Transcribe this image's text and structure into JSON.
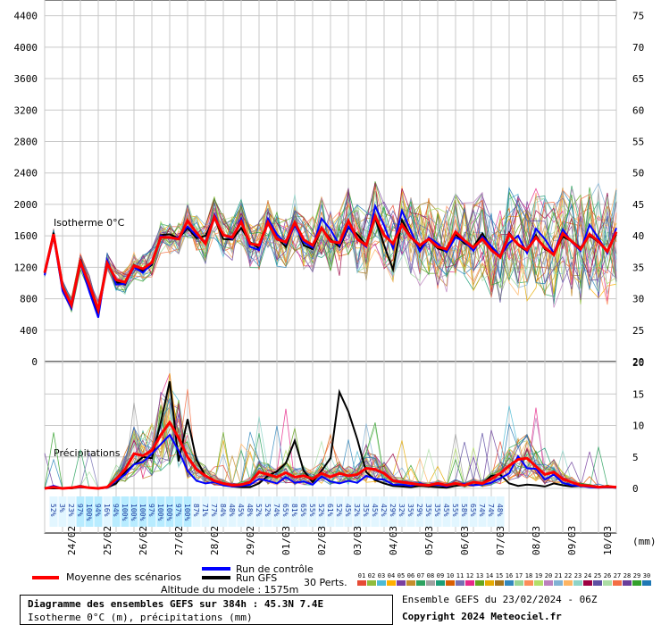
{
  "chart_data": {
    "type": "line",
    "title": "Diagramme des ensembles GEFS sur 384h : 45.3N 7.4E",
    "subtitle": "Isotherme 0°C (m), précipitations (mm)",
    "left_axis_ticks": [
      0,
      400,
      800,
      1200,
      1600,
      2000,
      2400,
      2800,
      3200,
      3600,
      4000,
      4400
    ],
    "right_axis_top_ticks": [
      20,
      25,
      30,
      35,
      40,
      45,
      50,
      55,
      60,
      65,
      70,
      75
    ],
    "right_axis_bottom_ticks": [
      0,
      5,
      10,
      15,
      20
    ],
    "right_axis_unit": "(mm)",
    "iso_range": [
      0,
      4600
    ],
    "precip_range": [
      0,
      20
    ],
    "panel_label_top": "Isotherme 0°C",
    "panel_label_bottom": "Précipitations",
    "date_labels": [
      "24/02",
      "25/02",
      "26/02",
      "27/02",
      "28/02",
      "29/02",
      "01/03",
      "02/03",
      "03/03",
      "04/03",
      "05/03",
      "06/03",
      "07/03",
      "08/03",
      "09/03",
      "10/03"
    ],
    "date_step_hours": 24,
    "first_date_hour": 18,
    "time_range_hours": [
      0,
      384
    ],
    "time_step_hours": 6,
    "probabilities": [
      "52%",
      "3%",
      "23%",
      "97%",
      "100%",
      "94%",
      "16%",
      "94%",
      "100%",
      "100%",
      "100%",
      "97%",
      "100%",
      "100%",
      "97%",
      "100%",
      "87%",
      "71%",
      "77%",
      "84%",
      "48%",
      "45%",
      "48%",
      "52%",
      "52%",
      "74%",
      "65%",
      "81%",
      "65%",
      "55%",
      "52%",
      "61%",
      "52%",
      "45%",
      "32%",
      "35%",
      "45%",
      "42%",
      "29%",
      "32%",
      "35%",
      "29%",
      "35%",
      "35%",
      "45%",
      "55%",
      "58%",
      "65%",
      "74%",
      "74%",
      "48%"
    ],
    "series": [
      {
        "name": "Moyenne des scénarios",
        "color": "#ff0000",
        "iso": [
          1130,
          1620,
          960,
          720,
          1270,
          980,
          660,
          1250,
          1040,
          1010,
          1220,
          1180,
          1260,
          1580,
          1580,
          1560,
          1790,
          1640,
          1500,
          1840,
          1610,
          1580,
          1780,
          1500,
          1480,
          1770,
          1560,
          1520,
          1770,
          1550,
          1480,
          1700,
          1530,
          1510,
          1790,
          1560,
          1480,
          1850,
          1610,
          1500,
          1740,
          1580,
          1480,
          1560,
          1460,
          1430,
          1650,
          1540,
          1450,
          1560,
          1420,
          1330,
          1620,
          1490,
          1420,
          1580,
          1450,
          1360,
          1630,
          1530,
          1430,
          1620,
          1530,
          1400,
          1650
        ],
        "pr": [
          0,
          0.2,
          0,
          0.1,
          0.3,
          0.1,
          0,
          0.2,
          1.5,
          3,
          5.5,
          5.2,
          6,
          8.5,
          10.5,
          8,
          5,
          3,
          2,
          1.2,
          0.8,
          0.5,
          0.6,
          1,
          2.6,
          2.2,
          1.8,
          2.5,
          1.8,
          2,
          1.5,
          2.4,
          1.8,
          2.4,
          2,
          2.2,
          3.2,
          3,
          2.4,
          1.2,
          1,
          0.8,
          0.6,
          0.5,
          0.8,
          0.5,
          0.8,
          0.5,
          1,
          0.8,
          1.5,
          2.4,
          3.6,
          4.6,
          4.8,
          3.5,
          2.2,
          2.6,
          1.5,
          1,
          0.5,
          0.4,
          0.2,
          0.3,
          0.2
        ]
      },
      {
        "name": "Run de contrôle",
        "color": "#0000ff",
        "iso": [
          1100,
          1590,
          900,
          680,
          1250,
          890,
          560,
          1290,
          980,
          990,
          1200,
          1130,
          1250,
          1600,
          1570,
          1580,
          1720,
          1600,
          1520,
          1870,
          1610,
          1560,
          1820,
          1460,
          1420,
          1820,
          1620,
          1500,
          1730,
          1520,
          1450,
          1820,
          1680,
          1480,
          1720,
          1560,
          1460,
          1980,
          1730,
          1440,
          1920,
          1660,
          1400,
          1580,
          1500,
          1390,
          1580,
          1530,
          1410,
          1590,
          1470,
          1340,
          1510,
          1600,
          1380,
          1690,
          1560,
          1380,
          1680,
          1520,
          1410,
          1740,
          1570,
          1380,
          1700
        ],
        "pr": [
          0,
          0.4,
          0,
          0.1,
          0.2,
          0.1,
          0,
          0.1,
          1.2,
          2.2,
          3.8,
          4.2,
          5.5,
          7,
          8.5,
          6,
          2.8,
          1.2,
          0.8,
          1,
          0.5,
          0.3,
          0.4,
          0.6,
          1.5,
          1.2,
          0.8,
          1.8,
          0.9,
          1.1,
          0.6,
          1.9,
          1.1,
          0.8,
          1.2,
          0.9,
          2,
          1.5,
          1.4,
          0.6,
          0.6,
          0.4,
          0.8,
          0.5,
          0.6,
          0.3,
          0.8,
          0.7,
          0.5,
          0.6,
          0.9,
          1.6,
          2.4,
          5.1,
          3.2,
          3.1,
          1.4,
          2.2,
          0.9,
          0.5,
          0.4,
          0.2,
          0.1,
          0.2,
          0.1
        ]
      },
      {
        "name": "Run GFS",
        "color": "#000000",
        "iso": [
          1120,
          1640,
          920,
          700,
          1300,
          940,
          600,
          1270,
          1010,
          980,
          1230,
          1150,
          1230,
          1610,
          1620,
          1570,
          1700,
          1570,
          1600,
          1830,
          1560,
          1550,
          1700,
          1520,
          1440,
          1790,
          1580,
          1460,
          1760,
          1480,
          1430,
          1690,
          1560,
          1460,
          1700,
          1620,
          1480,
          1830,
          1480,
          1170,
          1800,
          1590,
          1430,
          1560,
          1440,
          1400,
          1620,
          1500,
          1460,
          1630,
          1450,
          1340,
          1640,
          1480,
          1400,
          1610,
          1430,
          1370,
          1590,
          1530,
          1450,
          1600,
          1520,
          1410,
          1620
        ],
        "pr": [
          0,
          0,
          0,
          0,
          0.2,
          0.1,
          0,
          0.1,
          0.8,
          2.6,
          3.8,
          5,
          4.8,
          10.5,
          17,
          4.3,
          11,
          4.5,
          2,
          1.2,
          0.7,
          0.3,
          0.2,
          0.2,
          0.8,
          2,
          2.7,
          4,
          7.6,
          2.8,
          1,
          2.8,
          4.8,
          15.3,
          12.2,
          7.8,
          2.6,
          1.3,
          0.8,
          0.4,
          0.3,
          0.2,
          0.4,
          0.3,
          0.2,
          0.1,
          0.4,
          0.6,
          0.5,
          0.8,
          2,
          2.2,
          0.8,
          0.4,
          0.6,
          0.5,
          0.3,
          0.8,
          0.5,
          0.3,
          0.4,
          0.3,
          0.2,
          0.2,
          0.1
        ]
      }
    ],
    "member_count": 30,
    "member_colors": [
      "#e64b35",
      "#8fbc3d",
      "#4dbbd5",
      "#ffb000",
      "#7a3fa0",
      "#c58e2b",
      "#2ca25f",
      "#a0a0a0",
      "#1b9e77",
      "#d95f02",
      "#7570b3",
      "#e7298a",
      "#66a61e",
      "#e6ab02",
      "#a6761d",
      "#3288bd",
      "#99d594",
      "#fc8d59",
      "#b3de69",
      "#bc80bd",
      "#80b1d3",
      "#fdb462",
      "#8dd3c7",
      "#9e0142",
      "#5e4fa2",
      "#abdda4",
      "#f46d43",
      "#6a3d9a",
      "#33a02c",
      "#1f78b4"
    ],
    "legend": {
      "mean": "Moyenne des scénarios",
      "control": "Run de contrôle",
      "gfs": "Run GFS",
      "perts": "30 Perts.",
      "altitude": "Altitude du modele : 1575m"
    }
  },
  "footer": {
    "line1": "Diagramme des ensembles GEFS sur 384h : 45.3N 7.4E",
    "line2": "Isotherme 0°C (m), précipitations (mm)",
    "ensemble_run": "Ensemble GEFS du 23/02/2024 - 06Z",
    "copyright": "Copyright 2024 Meteociel.fr"
  }
}
